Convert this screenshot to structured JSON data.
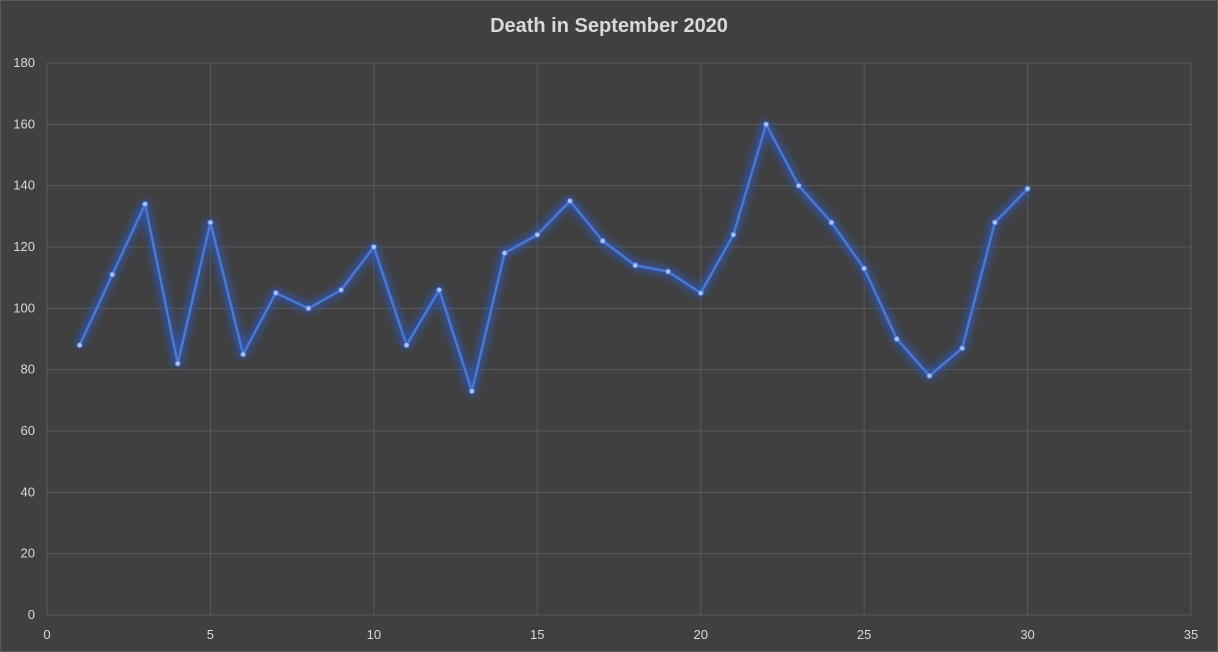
{
  "chart_data": {
    "type": "scatter",
    "title": "Death in September 2020",
    "xlabel": "",
    "ylabel": "",
    "xlim": [
      0,
      35
    ],
    "ylim": [
      0,
      180
    ],
    "xticks": [
      0,
      5,
      10,
      15,
      20,
      25,
      30,
      35
    ],
    "yticks": [
      0,
      20,
      40,
      60,
      80,
      100,
      120,
      140,
      160,
      180
    ],
    "grid": true,
    "legend": "none",
    "line_style": "straight lines with markers",
    "colors": {
      "background": "#404040",
      "series": "#4a78d0",
      "glow": "#2f58c8",
      "grid": "#595959",
      "text": "#d9d9d9"
    },
    "series": [
      {
        "x": [
          1,
          2,
          3,
          4,
          5,
          6,
          7,
          8,
          9,
          10,
          11,
          12,
          13,
          14,
          15,
          16,
          17,
          18,
          19,
          20,
          21,
          22,
          23,
          24,
          25,
          26,
          27,
          28,
          29,
          30
        ],
        "y": [
          88,
          111,
          134,
          82,
          128,
          85,
          105,
          100,
          106,
          120,
          88,
          106,
          73,
          118,
          124,
          135,
          122,
          114,
          112,
          105,
          124,
          160,
          140,
          128,
          113,
          90,
          78,
          87,
          128,
          139
        ]
      }
    ]
  }
}
